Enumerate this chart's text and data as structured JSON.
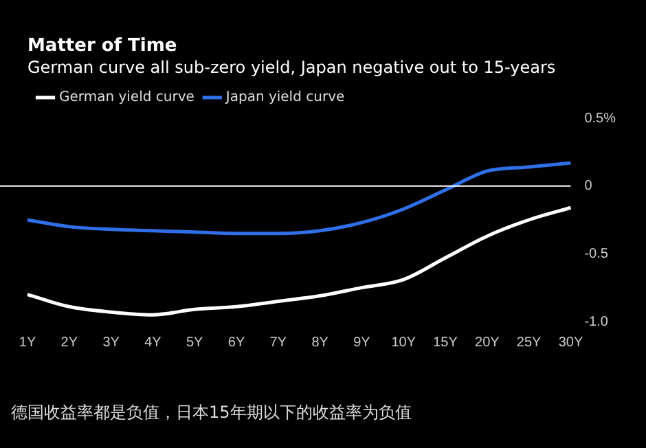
{
  "chart_data": {
    "type": "line",
    "title": "Matter of Time",
    "subtitle": "German curve all sub-zero yield, Japan negative out to 15-years",
    "categories": [
      "1Y",
      "2Y",
      "3Y",
      "4Y",
      "5Y",
      "6Y",
      "7Y",
      "8Y",
      "9Y",
      "10Y",
      "15Y",
      "20Y",
      "25Y",
      "30Y"
    ],
    "series": [
      {
        "name": "German yield curve",
        "color": "#ffffff",
        "values": [
          -0.8,
          -0.89,
          -0.93,
          -0.95,
          -0.91,
          -0.89,
          -0.85,
          -0.81,
          -0.75,
          -0.69,
          -0.53,
          -0.37,
          -0.25,
          -0.16
        ]
      },
      {
        "name": "Japan yield curve",
        "color": "#2f6fe8",
        "values": [
          -0.25,
          -0.3,
          -0.32,
          -0.33,
          -0.34,
          -0.35,
          -0.35,
          -0.33,
          -0.27,
          -0.17,
          -0.03,
          0.11,
          0.14,
          0.17
        ]
      }
    ],
    "ylim": [
      -1,
      0.5
    ],
    "yticks": [
      {
        "value": 0.5,
        "label": "0.5%"
      },
      0,
      {
        "value": -0.5,
        "label": "-0.5"
      },
      {
        "value": -1,
        "label": "-1.0"
      }
    ],
    "ref_lines": [
      {
        "axis": "y",
        "value": 0,
        "color": "#ffffff"
      }
    ],
    "grid": false,
    "legend": "top left",
    "marker": "none",
    "line_style": "solid",
    "annotations": [
      "德国收益率都是负值，日本15年期以下的收益率为负值"
    ]
  }
}
